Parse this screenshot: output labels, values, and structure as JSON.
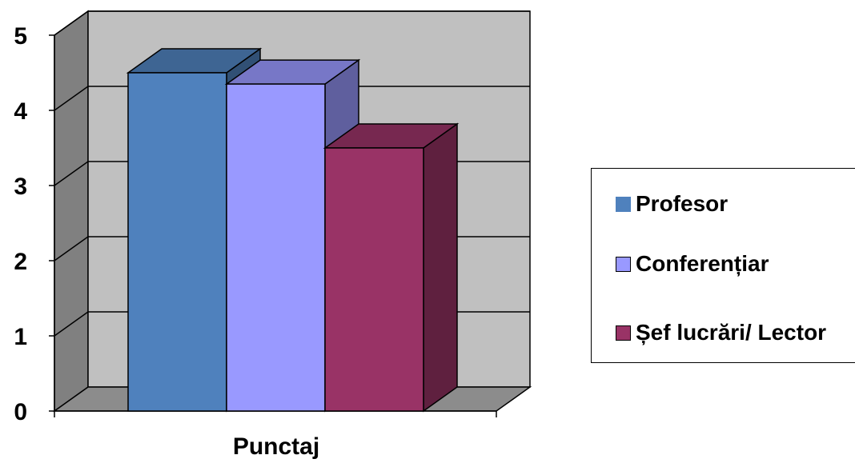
{
  "chart_data": {
    "type": "bar",
    "categories": [
      "Punctaj"
    ],
    "series": [
      {
        "name": "Profesor",
        "values": [
          4.5
        ],
        "color": "#4F81BD"
      },
      {
        "name": "Conferențiar",
        "values": [
          4.35
        ],
        "color": "#9999FF"
      },
      {
        "name": "Șef lucrări/ Lector",
        "values": [
          3.5
        ],
        "color": "#993366"
      }
    ],
    "yticks": [
      "0",
      "1",
      "2",
      "3",
      "4",
      "5"
    ],
    "ylim": [
      0,
      5
    ],
    "grid": true,
    "legend_position": "right",
    "style": "3d-column"
  }
}
